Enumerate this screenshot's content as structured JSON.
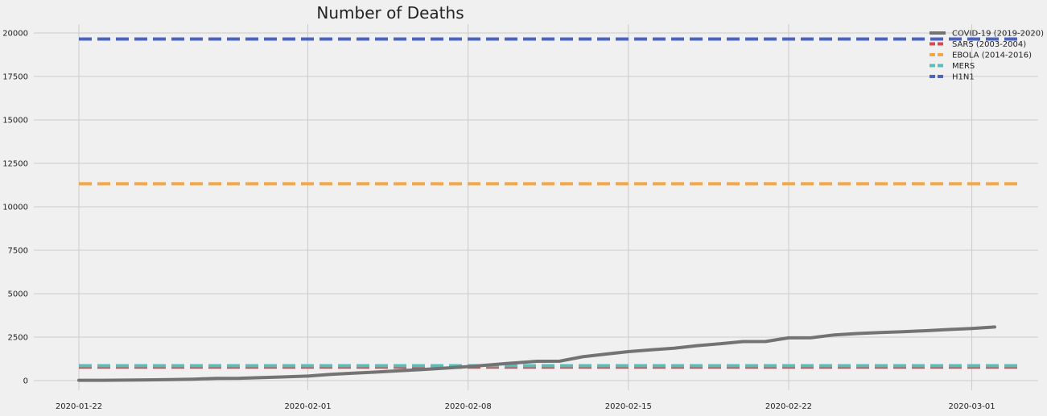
{
  "chart_data": {
    "type": "line",
    "title": "Number of Deaths",
    "xlabel": "",
    "ylabel": "",
    "x_start": "2020-01-22",
    "x_end": "2020-03-03",
    "xticks": [
      "2020-01-22",
      "2020-02-01",
      "2020-02-08",
      "2020-02-15",
      "2020-02-22",
      "2020-03-01"
    ],
    "ylim": [
      -500,
      20600
    ],
    "yticks": [
      0,
      2500,
      5000,
      7500,
      10000,
      12500,
      15000,
      17500,
      20000
    ],
    "grid": true,
    "legend_position": "top-right",
    "series": [
      {
        "name": "COVID-19 (2019-2020)",
        "color": "#737373",
        "dashed": false,
        "x": [
          "2020-01-22",
          "2020-01-23",
          "2020-01-24",
          "2020-01-25",
          "2020-01-26",
          "2020-01-27",
          "2020-01-28",
          "2020-01-29",
          "2020-01-30",
          "2020-01-31",
          "2020-02-01",
          "2020-02-02",
          "2020-02-03",
          "2020-02-04",
          "2020-02-05",
          "2020-02-06",
          "2020-02-07",
          "2020-02-08",
          "2020-02-09",
          "2020-02-10",
          "2020-02-11",
          "2020-02-12",
          "2020-02-13",
          "2020-02-14",
          "2020-02-15",
          "2020-02-16",
          "2020-02-17",
          "2020-02-18",
          "2020-02-19",
          "2020-02-20",
          "2020-02-21",
          "2020-02-22",
          "2020-02-23",
          "2020-02-24",
          "2020-02-25",
          "2020-02-26",
          "2020-02-27",
          "2020-02-28",
          "2020-02-29",
          "2020-03-01",
          "2020-03-02"
        ],
        "values": [
          17,
          18,
          26,
          42,
          56,
          82,
          131,
          133,
          171,
          213,
          259,
          362,
          426,
          492,
          564,
          634,
          719,
          806,
          906,
          1013,
          1113,
          1118,
          1371,
          1523,
          1666,
          1770,
          1868,
          2007,
          2122,
          2247,
          2251,
          2458,
          2469,
          2629,
          2708,
          2770,
          2814,
          2872,
          2941,
          2996,
          3085
        ]
      },
      {
        "name": "SARS (2003-2004)",
        "color": "#e5434b",
        "dashed": true,
        "constant": 774
      },
      {
        "name": "EBOLA (2014-2016)",
        "color": "#f5a742",
        "dashed": true,
        "constant": 11323
      },
      {
        "name": "MERS",
        "color": "#56bfb9",
        "dashed": true,
        "constant": 858
      },
      {
        "name": "H1N1",
        "color": "#4a63c5",
        "dashed": true,
        "constant": 19654
      }
    ]
  }
}
